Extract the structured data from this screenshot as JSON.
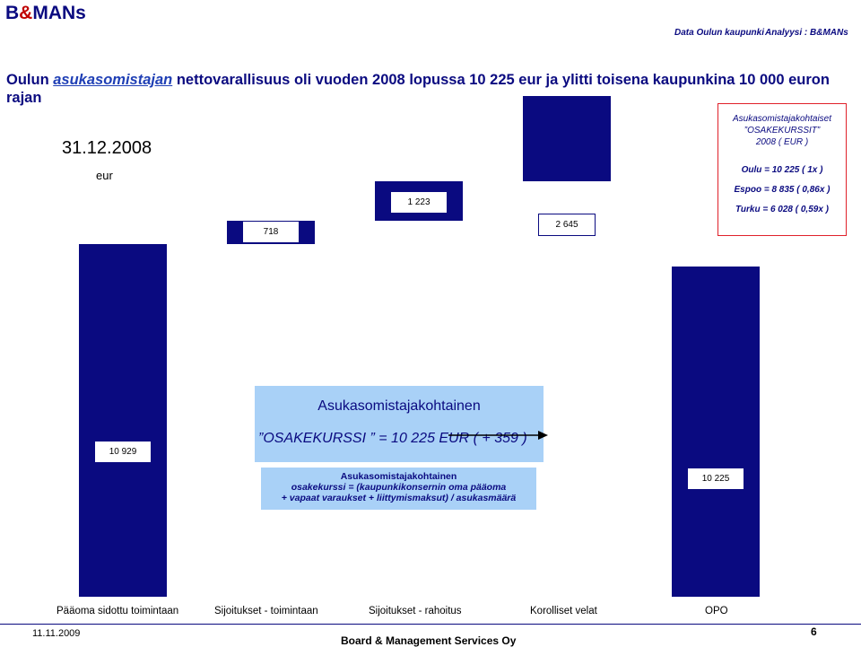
{
  "header": {
    "brand_prefix": "B",
    "brand_amp": "&",
    "brand_suffix": "MANs",
    "source": "Data Oulun kaupunki",
    "analysis": "Analyysi : B&MANs"
  },
  "title": {
    "prefix": "Oulun ",
    "emph": "asukasomistajan",
    "suffix": " nettovarallisuus oli vuoden 2008 lopussa 10 225 eur ja ylitti toisena kaupunkina 10 000 euron rajan"
  },
  "chart_date": "31.12.2008",
  "unit": "eur",
  "infobox": {
    "line1": "Asukasomistajakohtaiset",
    "line2": "”OSAKEKURSSIT”",
    "line3": "2008 ( EUR )",
    "oulu": "Oulu = 10 225 ( 1x )",
    "espoo": "Espoo = 8 835 ( 0,86x )",
    "turku": "Turku = 6 028 ( 0,59x )"
  },
  "big_box": {
    "line1": "Asukasomistajakohtainen",
    "line2": "”OSAKEKURSSI ” = 10 225 EUR ( + 359 )"
  },
  "small_box": {
    "line1": "Asukasomistajakohtainen",
    "line2": "osakekurssi = (kaupunkikonsernin oma pääoma",
    "line3": "+ vapaat varaukset + liittymismaksut) / asukasmäärä"
  },
  "colors": {
    "bar": "#0a0a80",
    "box": "#a9d1f7",
    "infobox_border": "#e0202a"
  },
  "chart_data": {
    "type": "bar",
    "subtype": "waterfall",
    "title": "",
    "xlabel": "",
    "ylabel": "eur",
    "ylim": [
      0,
      16000
    ],
    "categories": [
      "Pääoma sidottu toimintaan",
      "Sijoitukset - toimintaan",
      "Sijoitukset - rahoitus",
      "Korolliset velat",
      "OPO"
    ],
    "values": [
      10929,
      718,
      1223,
      2645,
      10225
    ],
    "bases": [
      0,
      10929,
      11647,
      12870,
      0
    ],
    "labels": [
      "10 929",
      "718",
      "1 223",
      "2 645",
      "10 225"
    ]
  },
  "footer": {
    "date": "11.11.2009",
    "company": "Board & Management Services Oy",
    "page": "6"
  }
}
